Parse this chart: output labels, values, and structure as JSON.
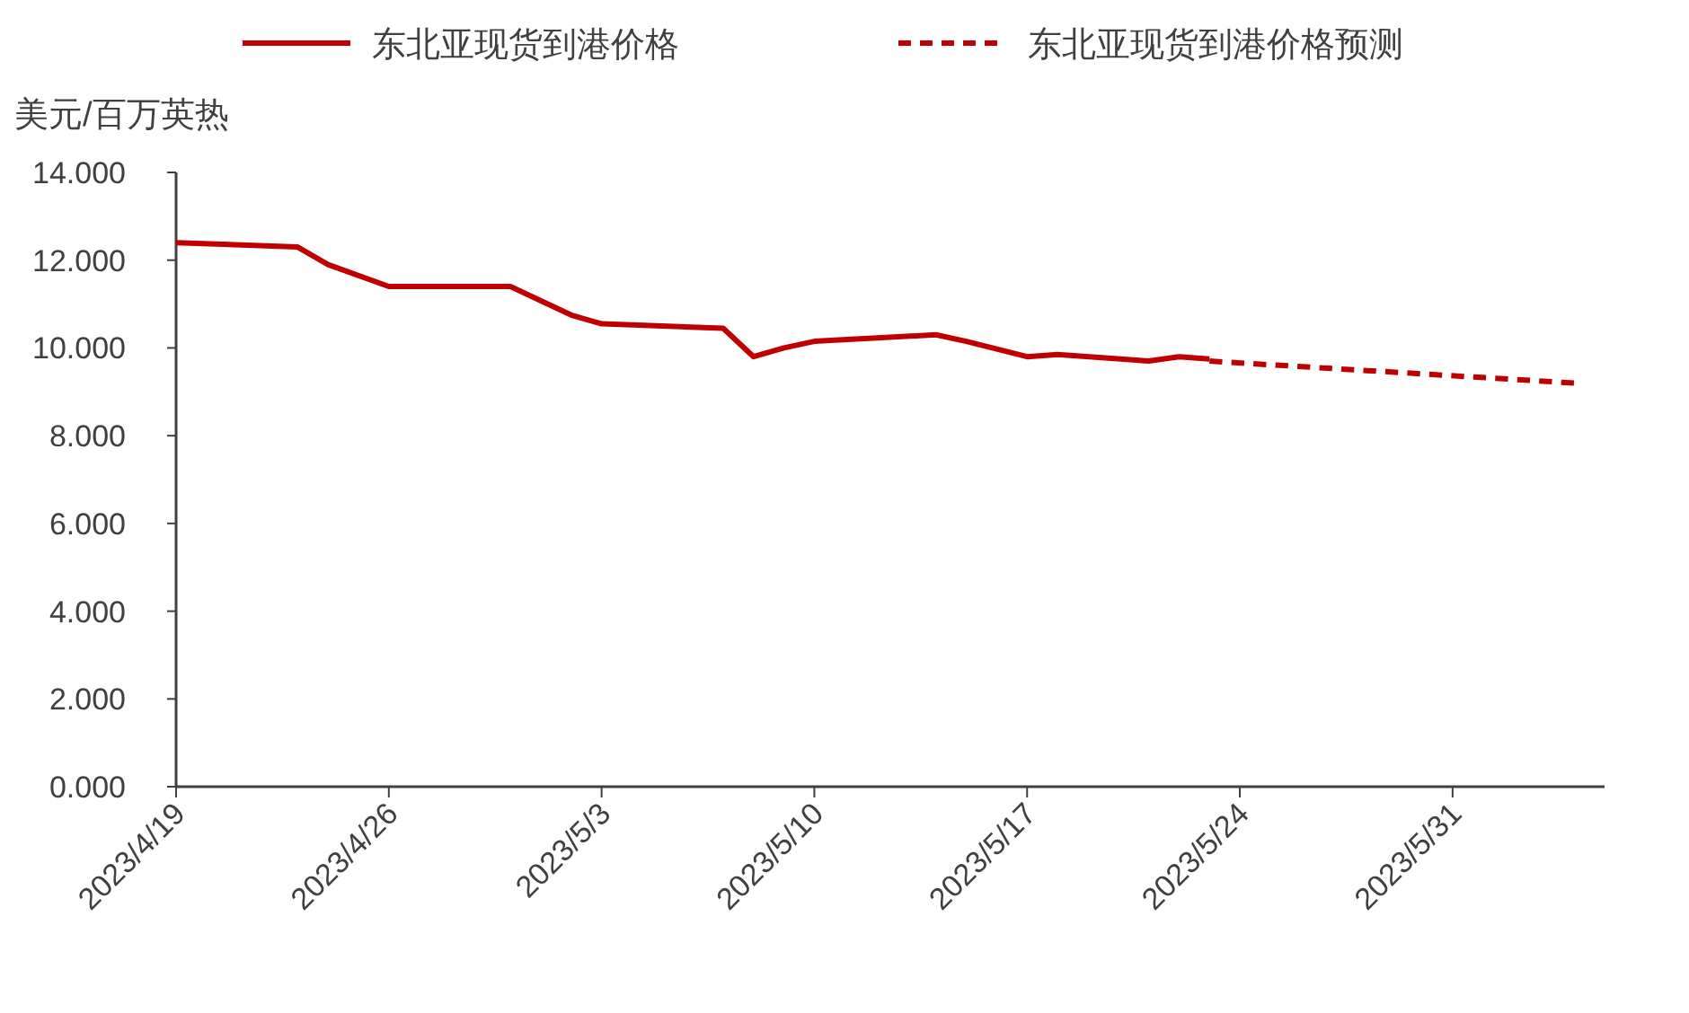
{
  "chart_data": {
    "type": "line",
    "ylabel": "美元/百万英热",
    "legend": "top",
    "grid": false,
    "marker": "none",
    "xlim": [
      "2023-04-19",
      "2023-06-05"
    ],
    "xticks": [
      {
        "value": "2023-04-19",
        "label": "2023/4/19"
      },
      {
        "value": "2023-04-26",
        "label": "2023/4/26"
      },
      {
        "value": "2023-05-03",
        "label": "2023/5/3"
      },
      {
        "value": "2023-05-10",
        "label": "2023/5/10"
      },
      {
        "value": "2023-05-17",
        "label": "2023/5/17"
      },
      {
        "value": "2023-05-24",
        "label": "2023/5/24"
      },
      {
        "value": "2023-05-31",
        "label": "2023/5/31"
      }
    ],
    "ylim": [
      0,
      14
    ],
    "yticks": [
      {
        "value": 0,
        "label": "0.000"
      },
      {
        "value": 2,
        "label": "2.000"
      },
      {
        "value": 4,
        "label": "4.000"
      },
      {
        "value": 6,
        "label": "6.000"
      },
      {
        "value": 8,
        "label": "8.000"
      },
      {
        "value": 10,
        "label": "10.000"
      },
      {
        "value": 12,
        "label": "12.000"
      },
      {
        "value": 14,
        "label": "14.000"
      }
    ],
    "series": [
      {
        "name": "东北亚现货到港价格",
        "color": "#c00000",
        "line_style": "solid",
        "x": [
          "2023-04-19",
          "2023-04-23",
          "2023-04-24",
          "2023-04-26",
          "2023-04-30",
          "2023-05-02",
          "2023-05-03",
          "2023-05-07",
          "2023-05-08",
          "2023-05-09",
          "2023-05-10",
          "2023-05-14",
          "2023-05-15",
          "2023-05-17",
          "2023-05-18",
          "2023-05-21",
          "2023-05-22",
          "2023-05-23"
        ],
        "values": [
          12.4,
          12.3,
          11.9,
          11.4,
          11.4,
          10.75,
          10.55,
          10.45,
          9.8,
          10.0,
          10.15,
          10.3,
          10.15,
          9.8,
          9.85,
          9.7,
          9.8,
          9.75
        ]
      },
      {
        "name": "东北亚现货到港价格预测",
        "color": "#c00000",
        "line_style": "dashed",
        "x": [
          "2023-05-23",
          "2023-06-04"
        ],
        "values": [
          9.7,
          9.2
        ]
      }
    ]
  }
}
